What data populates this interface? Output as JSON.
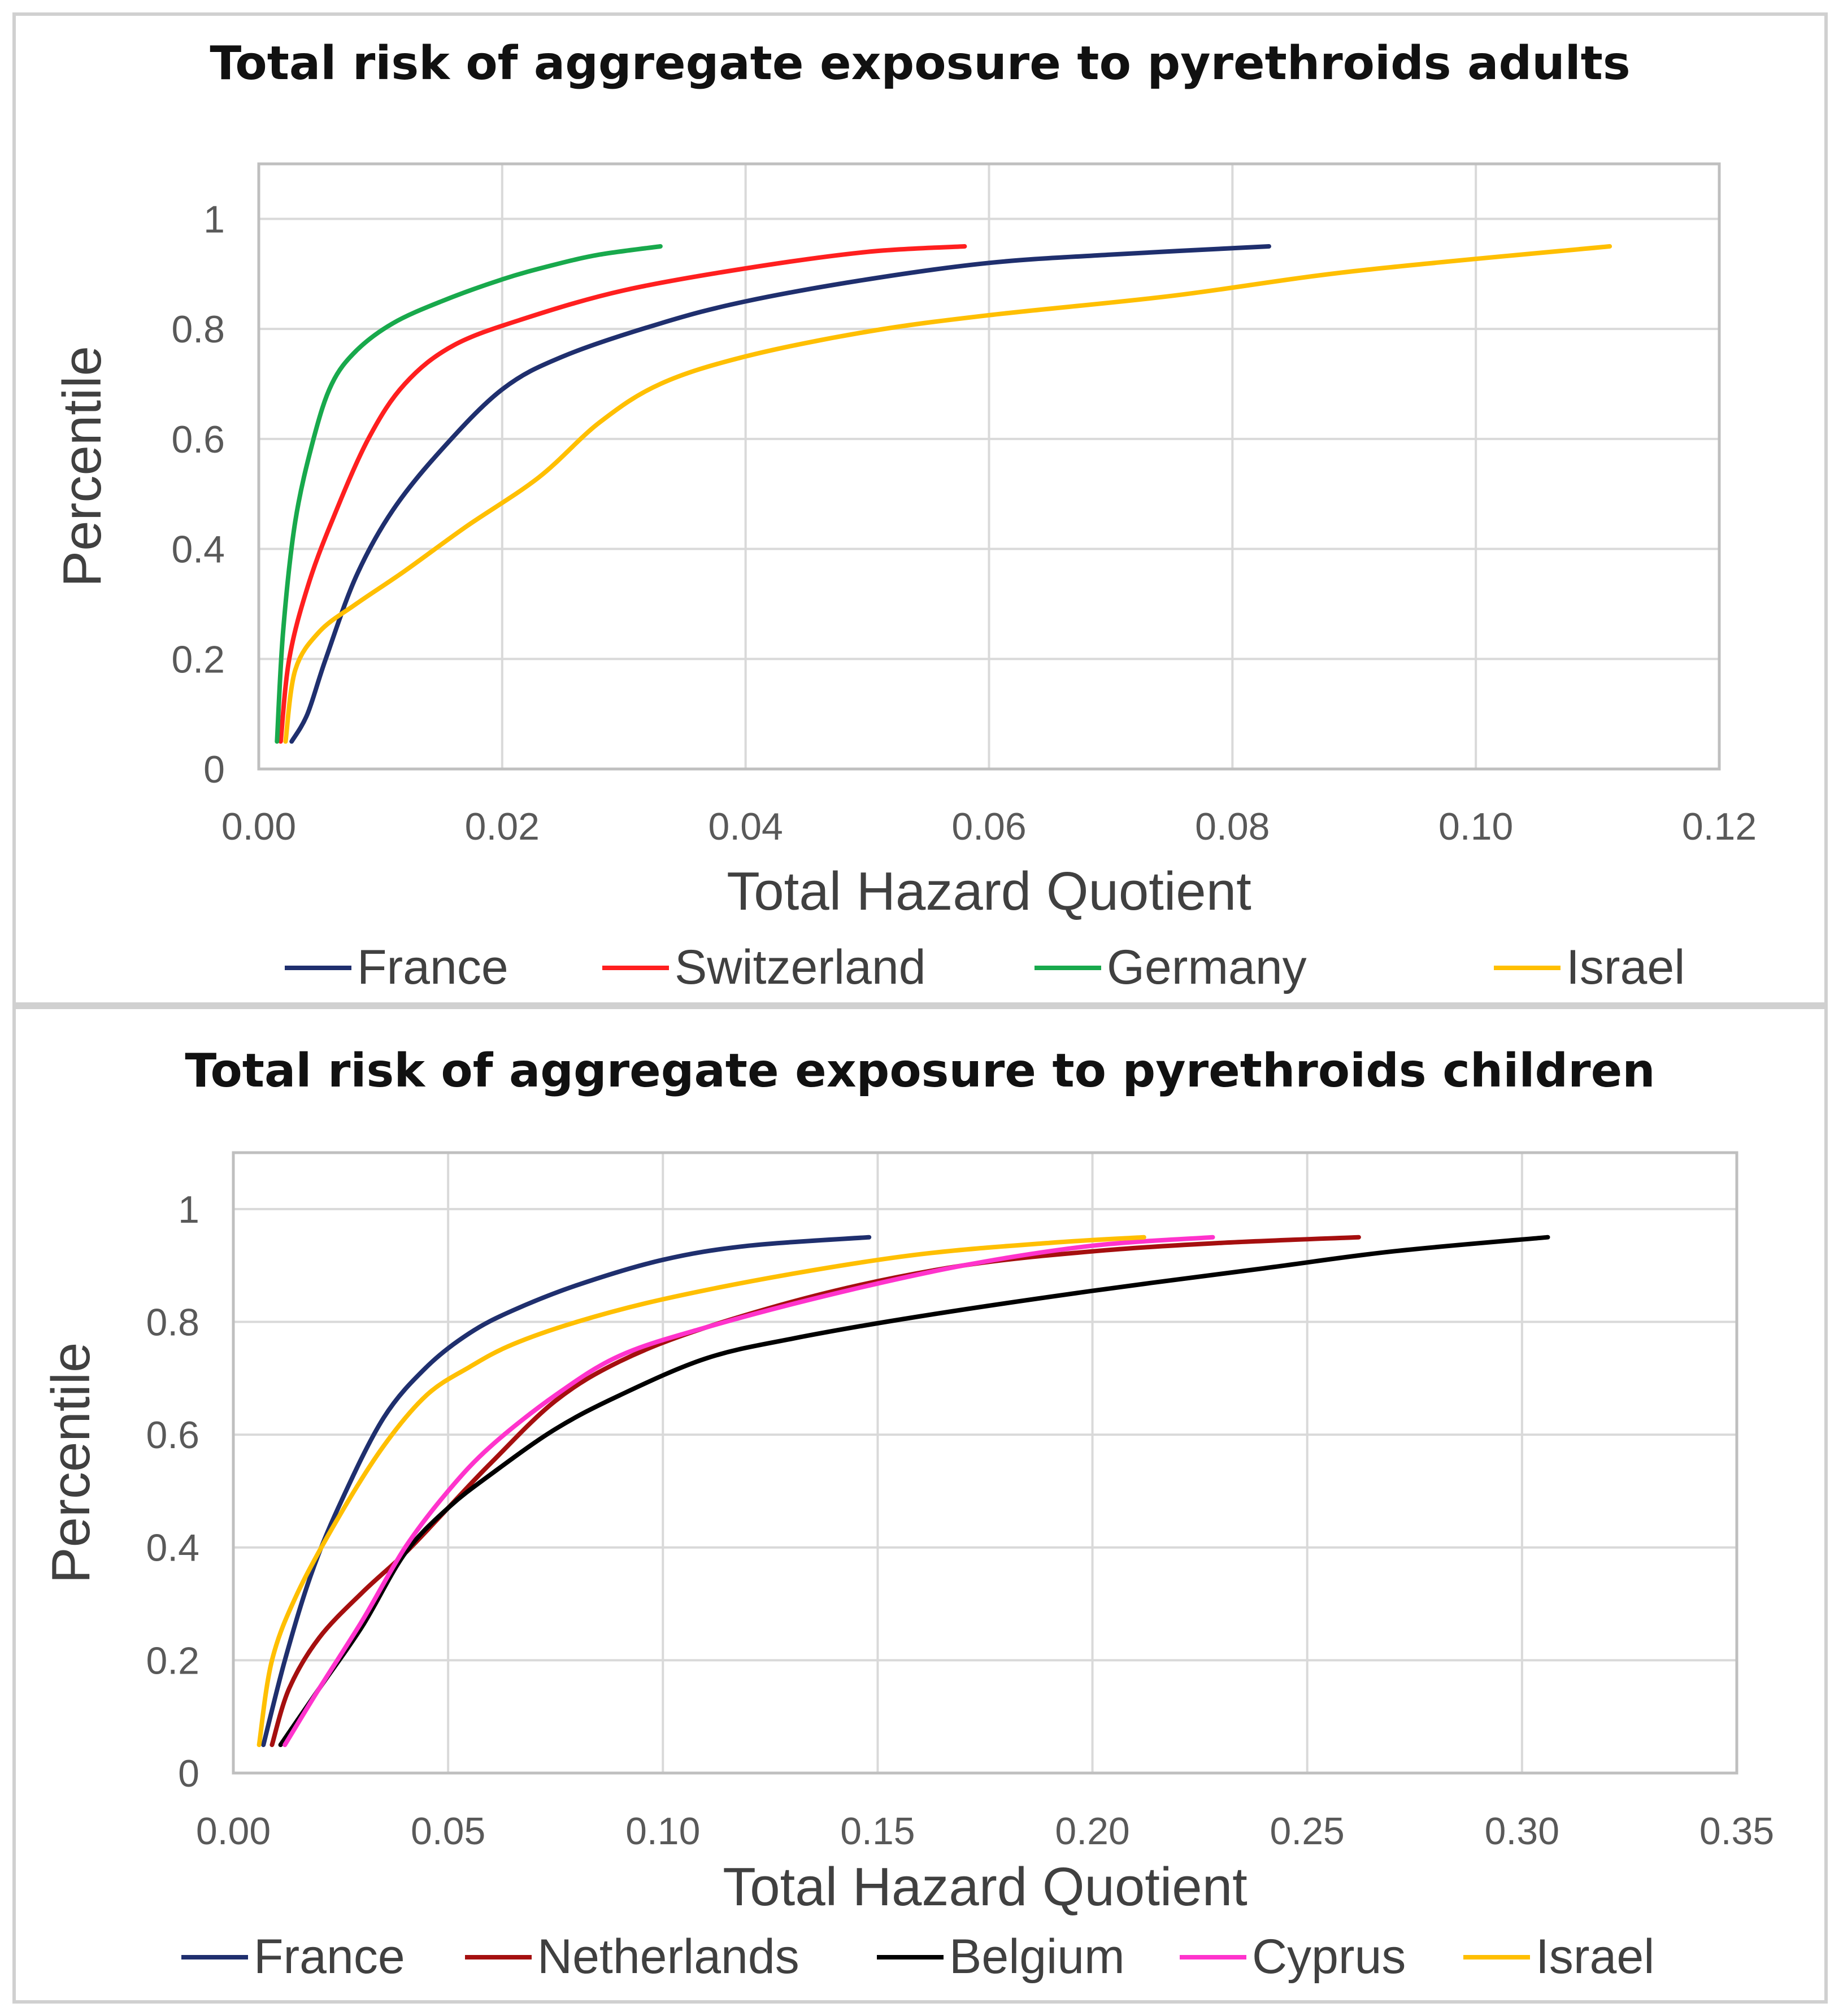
{
  "chart_data": [
    {
      "type": "line",
      "title": "Total risk of aggregate exposure to pyrethroids adults",
      "xlabel": "Total Hazard Quotient",
      "ylabel": "Percentile",
      "xlim": [
        0,
        0.12
      ],
      "ylim": [
        0,
        1.1
      ],
      "x_ticks": [
        "0.00",
        "0.02",
        "0.04",
        "0.06",
        "0.08",
        "0.10",
        "0.12"
      ],
      "x_tick_values": [
        0,
        0.02,
        0.04,
        0.06,
        0.08,
        0.1,
        0.12
      ],
      "y_ticks": [
        "0",
        "0.2",
        "0.4",
        "0.6",
        "0.8",
        "1"
      ],
      "y_tick_values": [
        0,
        0.2,
        0.4,
        0.6,
        0.8,
        1.0
      ],
      "grid": true,
      "legend_position": "bottom",
      "series": [
        {
          "name": "France",
          "color": "#1f2f6e",
          "x": [
            0.0027,
            0.004,
            0.0055,
            0.008,
            0.011,
            0.015,
            0.02,
            0.025,
            0.033,
            0.04,
            0.05,
            0.06,
            0.07,
            0.083
          ],
          "y": [
            0.05,
            0.1,
            0.2,
            0.35,
            0.47,
            0.58,
            0.69,
            0.75,
            0.81,
            0.85,
            0.89,
            0.92,
            0.935,
            0.95
          ]
        },
        {
          "name": "Switzerland",
          "color": "#ff1f1f",
          "x": [
            0.0018,
            0.0025,
            0.004,
            0.006,
            0.009,
            0.012,
            0.016,
            0.022,
            0.03,
            0.04,
            0.05,
            0.058
          ],
          "y": [
            0.05,
            0.2,
            0.33,
            0.45,
            0.6,
            0.7,
            0.77,
            0.82,
            0.87,
            0.91,
            0.94,
            0.95
          ]
        },
        {
          "name": "Germany",
          "color": "#18a94c",
          "x": [
            0.0015,
            0.002,
            0.003,
            0.0045,
            0.006,
            0.008,
            0.011,
            0.015,
            0.02,
            0.024,
            0.028,
            0.033
          ],
          "y": [
            0.05,
            0.25,
            0.45,
            0.6,
            0.7,
            0.76,
            0.81,
            0.85,
            0.89,
            0.915,
            0.935,
            0.95
          ]
        },
        {
          "name": "Israel",
          "color": "#ffbf00",
          "x": [
            0.0022,
            0.003,
            0.005,
            0.008,
            0.012,
            0.017,
            0.023,
            0.028,
            0.033,
            0.04,
            0.05,
            0.06,
            0.075,
            0.09,
            0.111
          ],
          "y": [
            0.05,
            0.18,
            0.25,
            0.3,
            0.36,
            0.44,
            0.53,
            0.63,
            0.7,
            0.75,
            0.795,
            0.825,
            0.86,
            0.905,
            0.95
          ]
        }
      ]
    },
    {
      "type": "line",
      "title": "Total risk of aggregate exposure to pyrethroids children",
      "xlabel": "Total Hazard Quotient",
      "ylabel": "Percentile",
      "xlim": [
        0,
        0.35
      ],
      "ylim": [
        0,
        1.1
      ],
      "x_ticks": [
        "0.00",
        "0.05",
        "0.10",
        "0.15",
        "0.20",
        "0.25",
        "0.30",
        "0.35"
      ],
      "x_tick_values": [
        0,
        0.05,
        0.1,
        0.15,
        0.2,
        0.25,
        0.3,
        0.35
      ],
      "y_ticks": [
        "0",
        "0.2",
        "0.4",
        "0.6",
        "0.8",
        "1"
      ],
      "y_tick_values": [
        0,
        0.2,
        0.4,
        0.6,
        0.8,
        1.0
      ],
      "grid": true,
      "legend_position": "bottom",
      "series": [
        {
          "name": "France",
          "color": "#1f2f6e",
          "x": [
            0.007,
            0.012,
            0.018,
            0.025,
            0.035,
            0.045,
            0.055,
            0.065,
            0.08,
            0.1,
            0.12,
            0.148
          ],
          "y": [
            0.05,
            0.2,
            0.35,
            0.48,
            0.63,
            0.72,
            0.78,
            0.82,
            0.865,
            0.91,
            0.935,
            0.95
          ]
        },
        {
          "name": "Netherlands",
          "color": "#a50f0f",
          "x": [
            0.009,
            0.013,
            0.02,
            0.03,
            0.04,
            0.05,
            0.06,
            0.075,
            0.09,
            0.11,
            0.14,
            0.17,
            0.2,
            0.23,
            0.262
          ],
          "y": [
            0.05,
            0.15,
            0.24,
            0.32,
            0.39,
            0.47,
            0.55,
            0.66,
            0.73,
            0.79,
            0.855,
            0.9,
            0.925,
            0.94,
            0.95
          ]
        },
        {
          "name": "Belgium",
          "color": "#000000",
          "x": [
            0.011,
            0.02,
            0.03,
            0.04,
            0.05,
            0.06,
            0.075,
            0.09,
            0.11,
            0.13,
            0.16,
            0.2,
            0.24,
            0.27,
            0.306
          ],
          "y": [
            0.05,
            0.15,
            0.26,
            0.39,
            0.47,
            0.53,
            0.61,
            0.67,
            0.735,
            0.77,
            0.81,
            0.855,
            0.895,
            0.925,
            0.95
          ]
        },
        {
          "name": "Cyprus",
          "color": "#ff33cc",
          "x": [
            0.012,
            0.02,
            0.03,
            0.04,
            0.05,
            0.06,
            0.075,
            0.09,
            0.11,
            0.14,
            0.17,
            0.2,
            0.228
          ],
          "y": [
            0.05,
            0.15,
            0.27,
            0.4,
            0.5,
            0.58,
            0.67,
            0.74,
            0.79,
            0.85,
            0.9,
            0.935,
            0.95
          ]
        },
        {
          "name": "Israel",
          "color": "#ffbf00",
          "x": [
            0.006,
            0.009,
            0.015,
            0.025,
            0.035,
            0.045,
            0.055,
            0.065,
            0.08,
            0.1,
            0.13,
            0.16,
            0.19,
            0.212
          ],
          "y": [
            0.05,
            0.2,
            0.32,
            0.46,
            0.58,
            0.67,
            0.72,
            0.76,
            0.8,
            0.84,
            0.885,
            0.92,
            0.94,
            0.95
          ]
        }
      ]
    }
  ]
}
